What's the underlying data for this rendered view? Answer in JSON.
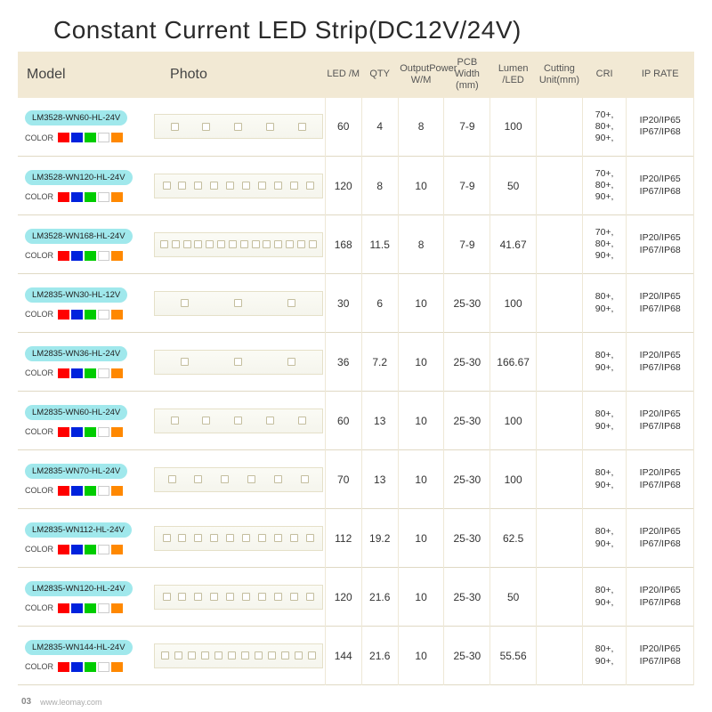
{
  "title": "Constant Current LED Strip(DC12V/24V)",
  "footer": {
    "page": "03",
    "url": "www.leomay.com"
  },
  "headers": {
    "model": "Model",
    "photo": "Photo",
    "led": "LED\n/M",
    "qty": "QTY",
    "power": "OutputPower\nW/M",
    "pcb": "PCB Width\n(mm)",
    "lumen": "Lumen\n/LED",
    "cutting": "Cutting\nUnit(mm)",
    "cri": "CRI",
    "ip": "IP RATE"
  },
  "color_label": "COLOR",
  "swatches": [
    "#ff0000",
    "#0022dd",
    "#00cc00",
    "#ffffff",
    "#ff8800"
  ],
  "strip_bg": "#f8f6ee",
  "rows": [
    {
      "model": "LM3528-WN60-HL-24V",
      "photo_leds": 5,
      "led": "60",
      "qty": "4",
      "power": "8",
      "pcb": "7-9",
      "lumen": "100",
      "cut": "",
      "cri": "70+,\n80+,\n90+,",
      "ip": "IP20/IP65\nIP67/IP68"
    },
    {
      "model": "LM3528-WN120-HL-24V",
      "photo_leds": 10,
      "led": "120",
      "qty": "8",
      "power": "10",
      "pcb": "7-9",
      "lumen": "50",
      "cut": "",
      "cri": "70+,\n80+,\n90+,",
      "ip": "IP20/IP65\nIP67/IP68"
    },
    {
      "model": "LM3528-WN168-HL-24V",
      "photo_leds": 14,
      "led": "168",
      "qty": "11.5",
      "power": "8",
      "pcb": "7-9",
      "lumen": "41.67",
      "cut": "",
      "cri": "70+,\n80+,\n90+,",
      "ip": "IP20/IP65\nIP67/IP68"
    },
    {
      "model": "LM2835-WN30-HL-12V",
      "photo_leds": 3,
      "led": "30",
      "qty": "6",
      "power": "10",
      "pcb": "25-30",
      "lumen": "100",
      "cut": "",
      "cri": "80+,\n90+,",
      "ip": "IP20/IP65\nIP67/IP68"
    },
    {
      "model": "LM2835-WN36-HL-24V",
      "photo_leds": 3,
      "led": "36",
      "qty": "7.2",
      "power": "10",
      "pcb": "25-30",
      "lumen": "166.67",
      "cut": "",
      "cri": "80+,\n90+,",
      "ip": "IP20/IP65\nIP67/IP68"
    },
    {
      "model": "LM2835-WN60-HL-24V",
      "photo_leds": 5,
      "led": "60",
      "qty": "13",
      "power": "10",
      "pcb": "25-30",
      "lumen": "100",
      "cut": "",
      "cri": "80+,\n90+,",
      "ip": "IP20/IP65\nIP67/IP68"
    },
    {
      "model": "LM2835-WN70-HL-24V",
      "photo_leds": 6,
      "led": "70",
      "qty": "13",
      "power": "10",
      "pcb": "25-30",
      "lumen": "100",
      "cut": "",
      "cri": "80+,\n90+,",
      "ip": "IP20/IP65\nIP67/IP68"
    },
    {
      "model": "LM2835-WN112-HL-24V",
      "photo_leds": 10,
      "led": "112",
      "qty": "19.2",
      "power": "10",
      "pcb": "25-30",
      "lumen": "62.5",
      "cut": "",
      "cri": "80+,\n90+,",
      "ip": "IP20/IP65\nIP67/IP68"
    },
    {
      "model": "LM2835-WN120-HL-24V",
      "photo_leds": 10,
      "led": "120",
      "qty": "21.6",
      "power": "10",
      "pcb": "25-30",
      "lumen": "50",
      "cut": "",
      "cri": "80+,\n90+,",
      "ip": "IP20/IP65\nIP67/IP68"
    },
    {
      "model": "LM2835-WN144-HL-24V",
      "photo_leds": 12,
      "led": "144",
      "qty": "21.6",
      "power": "10",
      "pcb": "25-30",
      "lumen": "55.56",
      "cut": "",
      "cri": "80+,\n90+,",
      "ip": "IP20/IP65\nIP67/IP68"
    }
  ]
}
